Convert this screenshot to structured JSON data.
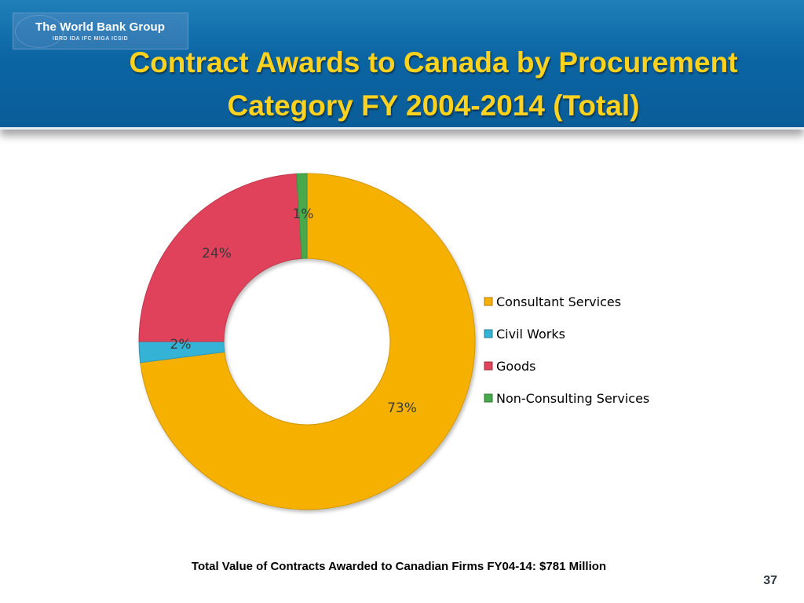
{
  "header": {
    "logo_name": "The World Bank Group",
    "logo_sub": "IBRD  IDA  IFC  MIGA  ICSID",
    "title_line1": "Contract Awards to Canada by Procurement",
    "title_line2": "Category FY 2004-2014 (Total)"
  },
  "chart_data": {
    "type": "pie",
    "style": "doughnut",
    "categories": [
      "Consultant Services",
      "Civil Works",
      "Goods",
      "Non-Consulting Services"
    ],
    "values": [
      73,
      2,
      24,
      1
    ],
    "labels": [
      "73%",
      "2%",
      "24%",
      "1%"
    ],
    "colors": [
      "#f6b100",
      "#35b3d6",
      "#e0435c",
      "#47a94b"
    ],
    "legend_position": "right"
  },
  "caption": "Total Value of Contracts Awarded to Canadian Firms FY04-14: $781 Million",
  "page_number": "37"
}
